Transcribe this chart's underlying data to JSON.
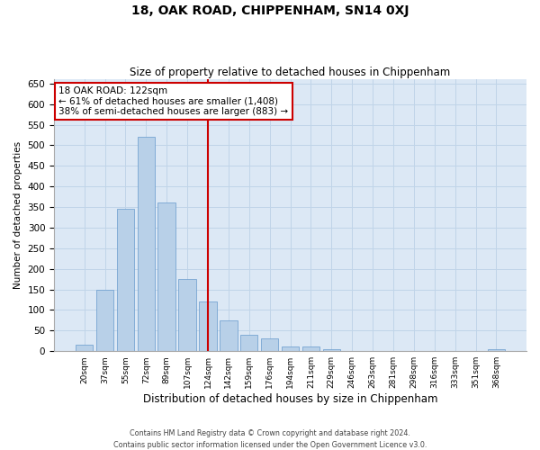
{
  "title": "18, OAK ROAD, CHIPPENHAM, SN14 0XJ",
  "subtitle": "Size of property relative to detached houses in Chippenham",
  "xlabel": "Distribution of detached houses by size in Chippenham",
  "ylabel": "Number of detached properties",
  "categories": [
    "20sqm",
    "37sqm",
    "55sqm",
    "72sqm",
    "89sqm",
    "107sqm",
    "124sqm",
    "142sqm",
    "159sqm",
    "176sqm",
    "194sqm",
    "211sqm",
    "229sqm",
    "246sqm",
    "263sqm",
    "281sqm",
    "298sqm",
    "316sqm",
    "333sqm",
    "351sqm",
    "368sqm"
  ],
  "values": [
    15,
    150,
    345,
    520,
    360,
    175,
    120,
    75,
    40,
    30,
    12,
    12,
    5,
    0,
    0,
    0,
    0,
    0,
    0,
    0,
    5
  ],
  "bar_color": "#b8d0e8",
  "bar_edge_color": "#6699cc",
  "vline_color": "#cc0000",
  "vline_index": 6,
  "annotation_title": "18 OAK ROAD: 122sqm",
  "annotation_line1": "← 61% of detached houses are smaller (1,408)",
  "annotation_line2": "38% of semi-detached houses are larger (883) →",
  "ylim": [
    0,
    660
  ],
  "yticks": [
    0,
    50,
    100,
    150,
    200,
    250,
    300,
    350,
    400,
    450,
    500,
    550,
    600,
    650
  ],
  "grid_color": "#c0d4e8",
  "bg_color": "#dce8f5",
  "footer1": "Contains HM Land Registry data © Crown copyright and database right 2024.",
  "footer2": "Contains public sector information licensed under the Open Government Licence v3.0."
}
